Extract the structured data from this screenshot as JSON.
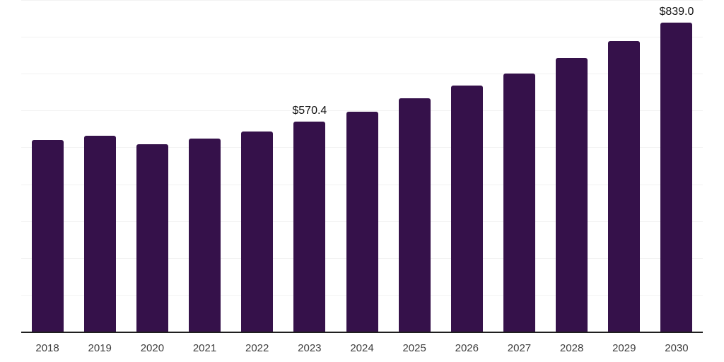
{
  "chart_data": {
    "type": "bar",
    "title": "",
    "xlabel": "",
    "ylabel": "",
    "categories": [
      "2018",
      "2019",
      "2020",
      "2021",
      "2022",
      "2023",
      "2024",
      "2025",
      "2026",
      "2027",
      "2028",
      "2029",
      "2030"
    ],
    "values": [
      520,
      532,
      508,
      524,
      543,
      570.4,
      597,
      633,
      668,
      701,
      742,
      789,
      839
    ],
    "value_labels": [
      {
        "category": "2023",
        "text": "$570.4"
      },
      {
        "category": "2030",
        "text": "$839.0"
      }
    ],
    "ylim": [
      0,
      900
    ],
    "gridline_step": 100,
    "grid": "horizontal",
    "y_tick_labels_visible": false,
    "legend_position": "none"
  },
  "colors": {
    "bar": "#35114a",
    "axis_line": "#1f1f1f",
    "gridline": "#f2f2f2",
    "tick_label": "#3d3d3d",
    "value_label": "#111111",
    "background": "#ffffff"
  }
}
